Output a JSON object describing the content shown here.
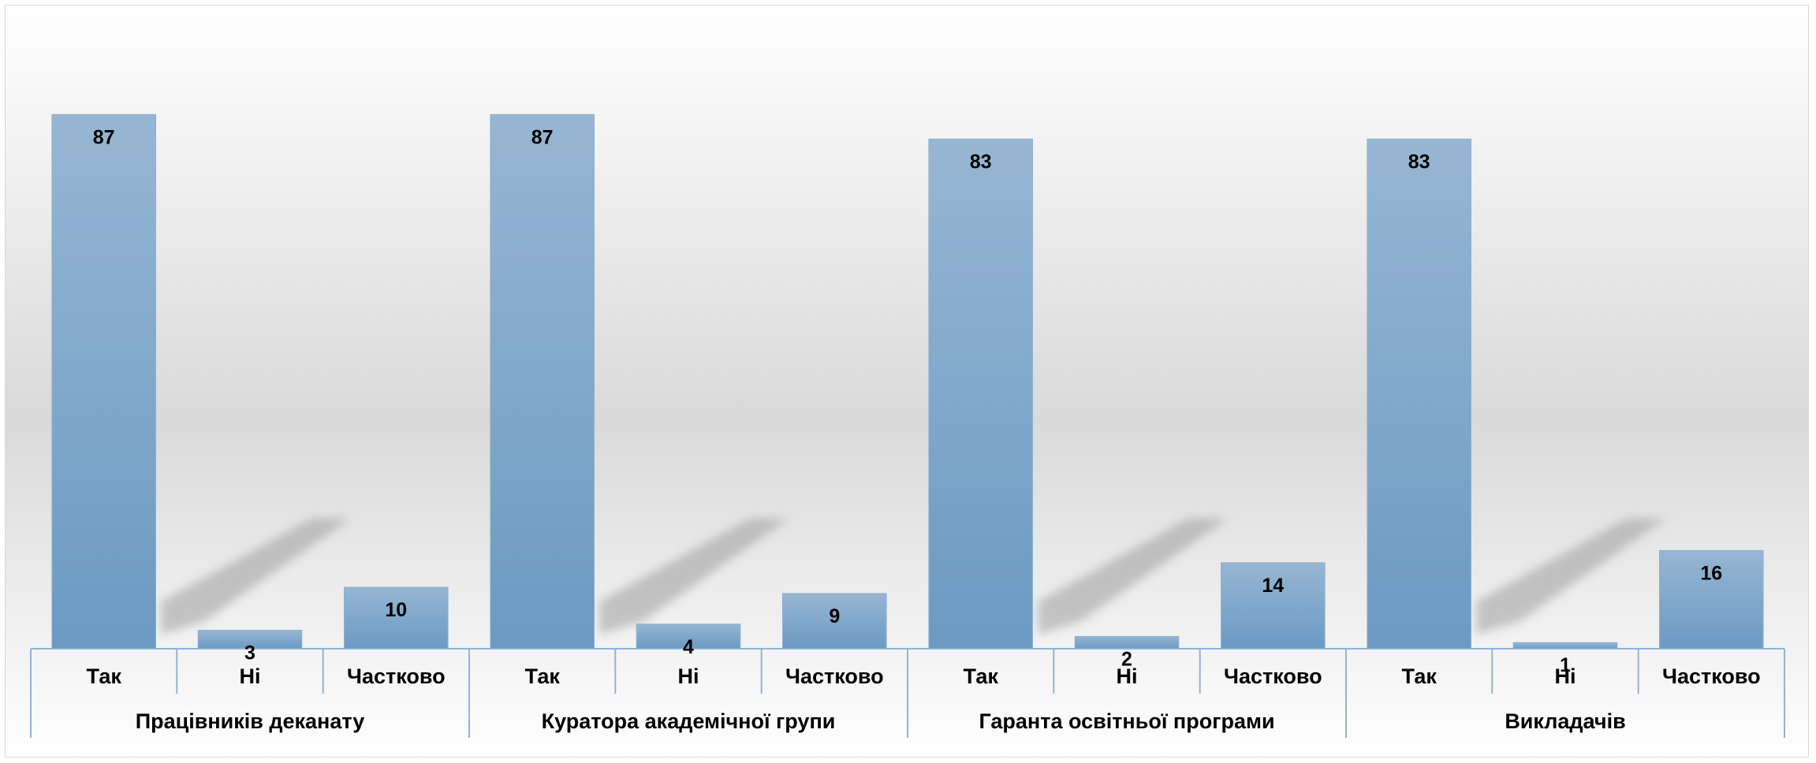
{
  "chart_data": {
    "type": "bar",
    "title": "",
    "xlabel": "",
    "ylabel": "",
    "ylim": [
      0,
      100
    ],
    "grid": false,
    "legend": "none",
    "bar_color_top": "#97b6d3",
    "bar_color_bottom": "#6b9ac3",
    "axis_color": "#8fb4d6",
    "groups": [
      {
        "label": "Працівників деканату",
        "categories": [
          "Так",
          "Ні",
          "Частково"
        ],
        "values": [
          87,
          3,
          10
        ]
      },
      {
        "label": "Куратора академічної групи",
        "categories": [
          "Так",
          "Ні",
          "Частково"
        ],
        "values": [
          87,
          4,
          9
        ]
      },
      {
        "label": "Гаранта освітньої програми",
        "categories": [
          "Так",
          "Ні",
          "Частково"
        ],
        "values": [
          83,
          2,
          14
        ]
      },
      {
        "label": "Викладачів",
        "categories": [
          "Так",
          "Ні",
          "Частково"
        ],
        "values": [
          83,
          1,
          16
        ]
      }
    ]
  }
}
